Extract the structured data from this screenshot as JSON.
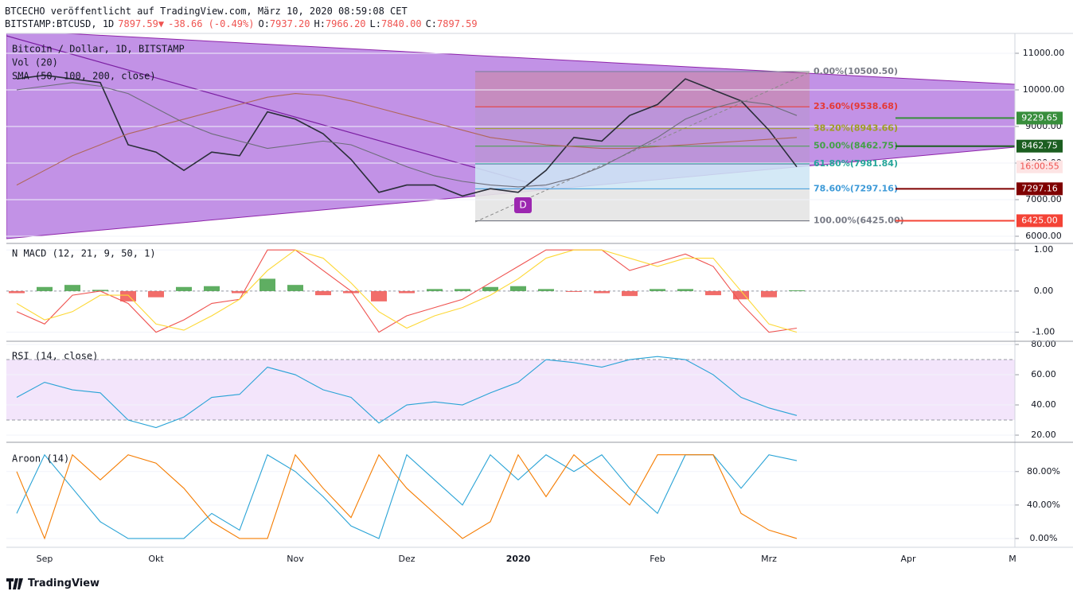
{
  "header": {
    "publisher": "BTCECHO veröffentlicht auf TradingView.com, März 10, 2020 08:59:08 CET",
    "quote": [
      [
        {
          "text": "BITSTAMP:BTCUSD, 1D",
          "color": "#131722"
        }
      ],
      [
        {
          "text": "7897.59",
          "color": "#ef5350"
        },
        {
          "text": "▼",
          "color": "#ef5350"
        }
      ],
      [
        {
          "text": "-38.66 (-0.49%)",
          "color": "#ef5350"
        }
      ],
      [
        {
          "text": "O:",
          "color": "#131722"
        },
        {
          "text": "7937.20",
          "color": "#ef5350"
        }
      ],
      [
        {
          "text": "H:",
          "color": "#131722"
        },
        {
          "text": "7966.20",
          "color": "#ef5350"
        }
      ],
      [
        {
          "text": "L:",
          "color": "#131722"
        },
        {
          "text": "7840.00",
          "color": "#ef5350"
        }
      ],
      [
        {
          "text": "C:",
          "color": "#131722"
        },
        {
          "text": "7897.59",
          "color": "#ef5350"
        }
      ]
    ]
  },
  "footer": {
    "brand": "TradingView"
  },
  "chart_data": [
    {
      "type": "line",
      "title": "Bitcoin / Dollar, 1D, BITSTAMP",
      "legend_lines": [
        "Vol (20)",
        "SMA (50, 100, 200, close)"
      ],
      "marker": "D",
      "categories": [
        null,
        "Sep",
        null,
        null,
        null,
        "Okt",
        null,
        null,
        null,
        null,
        "Nov",
        null,
        null,
        null,
        "Dez",
        null,
        null,
        null,
        "2020",
        null,
        null,
        null,
        null,
        "Feb",
        null,
        null,
        null,
        "Mrz",
        null,
        null,
        null,
        null,
        "Apr",
        null,
        null,
        null,
        "M"
      ],
      "series": [
        {
          "color": "#2a2e39",
          "values": [
            10300,
            10400,
            10300,
            10200,
            8500,
            8300,
            7800,
            8300,
            8200,
            9400,
            9200,
            8800,
            8100,
            7200,
            7400,
            7400,
            7100,
            7300,
            7200,
            7800,
            8700,
            8600,
            9300,
            9600,
            10300,
            10000,
            9700,
            8900,
            7897.59,
            null,
            null,
            null,
            null,
            null,
            null,
            null,
            null
          ]
        },
        {
          "color": "#b0665a",
          "values": [
            7400,
            7800,
            8200,
            8500,
            8800,
            9000,
            9200,
            9400,
            9600,
            9800,
            9900,
            9850,
            9700,
            9500,
            9300,
            9100,
            8900,
            8700,
            8600,
            8500,
            8450,
            8400,
            8400,
            8450,
            8500,
            8550,
            8600,
            8650,
            8700,
            null,
            null,
            null,
            null,
            null,
            null,
            null,
            null
          ]
        },
        {
          "color": "#6d6d7a",
          "values": [
            10000,
            10100,
            10200,
            10100,
            9900,
            9500,
            9100,
            8800,
            8600,
            8400,
            8500,
            8600,
            8500,
            8200,
            7900,
            7650,
            7500,
            7400,
            7350,
            7400,
            7600,
            7900,
            8300,
            8700,
            9200,
            9500,
            9700,
            9600,
            9300,
            null,
            null,
            null,
            null,
            null,
            null,
            null,
            null
          ]
        }
      ],
      "ylim": [
        5826,
        11543
      ],
      "yticks": [
        {
          "value": 6000,
          "label": "6000.00"
        },
        {
          "value": 7000,
          "label": "7000.00"
        },
        {
          "value": 8000,
          "label": "8000.00"
        },
        {
          "value": 9000,
          "label": "9000.00"
        },
        {
          "value": 10000,
          "label": "10000.00"
        },
        {
          "value": 11000,
          "label": "11000.00"
        }
      ],
      "grid": true,
      "fib_levels": [
        {
          "value": 10500.5,
          "label": "0.00%(10500.50)",
          "color": "#787b86"
        },
        {
          "value": 9538.68,
          "label": "23.60%(9538.68)",
          "color": "#e53935"
        },
        {
          "value": 8943.66,
          "label": "38.20%(8943.66)",
          "color": "#9e9d24"
        },
        {
          "value": 8462.75,
          "label": "50.00%(8462.75)",
          "color": "#43a047"
        },
        {
          "value": 7981.84,
          "label": "61.80%(7981.84)",
          "color": "#26a69a"
        },
        {
          "value": 7297.16,
          "label": "78.60%(7297.16)",
          "color": "#3d9ad8"
        },
        {
          "value": 6425,
          "label": "100.00%(6425.00)",
          "color": "#787b86"
        }
      ],
      "price_tags": [
        {
          "value": 9229.65,
          "label": "9229.65",
          "color": "#388e3c"
        },
        {
          "value": 8462.75,
          "label": "8462.75",
          "color": "#1b5e20"
        },
        {
          "value": 7297.16,
          "label": "7297.16",
          "color": "#7f0000"
        },
        {
          "value": 6425,
          "label": "6425.00",
          "color": "#f44336"
        }
      ],
      "countdown": {
        "text": "16:00:55",
        "color": "#ef5350"
      }
    },
    {
      "type": "line",
      "title": "N MACD (12, 21, 9, 50, 1)",
      "series": [
        {
          "color": "#ef5350",
          "values": [
            -0.5,
            -0.8,
            -0.1,
            0,
            -0.3,
            -1,
            -0.7,
            -0.3,
            -0.2,
            1,
            1,
            0.5,
            0,
            -1,
            -0.6,
            -0.4,
            -0.2,
            0.2,
            0.6,
            1,
            1,
            1,
            0.5,
            0.7,
            0.9,
            0.6,
            -0.3,
            -1,
            -0.9
          ]
        },
        {
          "color": "#fdd835",
          "values": [
            -0.3,
            -0.7,
            -0.5,
            -0.1,
            -0.1,
            -0.8,
            -0.95,
            -0.6,
            -0.2,
            0.5,
            1,
            0.8,
            0.2,
            -0.5,
            -0.9,
            -0.6,
            -0.4,
            -0.1,
            0.3,
            0.8,
            1,
            1,
            0.8,
            0.6,
            0.8,
            0.8,
            0,
            -0.8,
            -1
          ]
        }
      ],
      "histogram": {
        "up": "#43a047",
        "down": "#ef5350",
        "values": [
          -0.05,
          0.1,
          0.15,
          0.03,
          -0.25,
          -0.15,
          0.1,
          0.12,
          -0.05,
          0.3,
          0.15,
          -0.1,
          -0.05,
          -0.25,
          -0.05,
          0.05,
          0.05,
          0.1,
          0.12,
          0.05,
          -0.02,
          -0.05,
          -0.12,
          0.05,
          0.05,
          -0.1,
          -0.2,
          -0.15,
          0.02
        ]
      },
      "ylim": [
        -1.2,
        1.12
      ],
      "yticks": [
        {
          "value": -1,
          "label": "-1.00"
        },
        {
          "value": 0,
          "label": "0.00"
        },
        {
          "value": 1,
          "label": "1.00"
        }
      ],
      "grid": true
    },
    {
      "type": "line",
      "title": "RSI (14, close)",
      "series": [
        {
          "color": "#29a3d6",
          "values": [
            45,
            55,
            50,
            48,
            30,
            25,
            32,
            45,
            47,
            65,
            60,
            50,
            45,
            28,
            40,
            42,
            40,
            48,
            55,
            70,
            68,
            65,
            70,
            72,
            70,
            60,
            45,
            38,
            33
          ]
        }
      ],
      "bands": [
        30,
        70
      ],
      "band_color": "#f3e5fb",
      "ylim": [
        15.8,
        81.6
      ],
      "yticks": [
        {
          "value": 20,
          "label": "20.00"
        },
        {
          "value": 40,
          "label": "40.00"
        },
        {
          "value": 60,
          "label": "60.00"
        },
        {
          "value": 80,
          "label": "80.00"
        }
      ],
      "grid": true
    },
    {
      "type": "line",
      "title": "Aroon (14)",
      "series": [
        {
          "color": "#29a3d6",
          "values": [
            30,
            100,
            60,
            20,
            0,
            0,
            0,
            30,
            10,
            100,
            80,
            50,
            15,
            0,
            100,
            70,
            40,
            100,
            70,
            100,
            80,
            100,
            60,
            30,
            100,
            100,
            60,
            100,
            93
          ]
        },
        {
          "color": "#f57c00",
          "values": [
            80,
            0,
            100,
            70,
            100,
            90,
            60,
            20,
            0,
            0,
            100,
            60,
            25,
            100,
            60,
            30,
            0,
            20,
            100,
            50,
            100,
            70,
            40,
            100,
            100,
            100,
            30,
            10,
            0
          ]
        }
      ],
      "ylim": [
        -10.5,
        114
      ],
      "yticks": [
        {
          "value": 0,
          "label": "0.00%"
        },
        {
          "value": 40,
          "label": "40.00%"
        },
        {
          "value": 80,
          "label": "80.00%"
        }
      ],
      "grid": true
    }
  ]
}
